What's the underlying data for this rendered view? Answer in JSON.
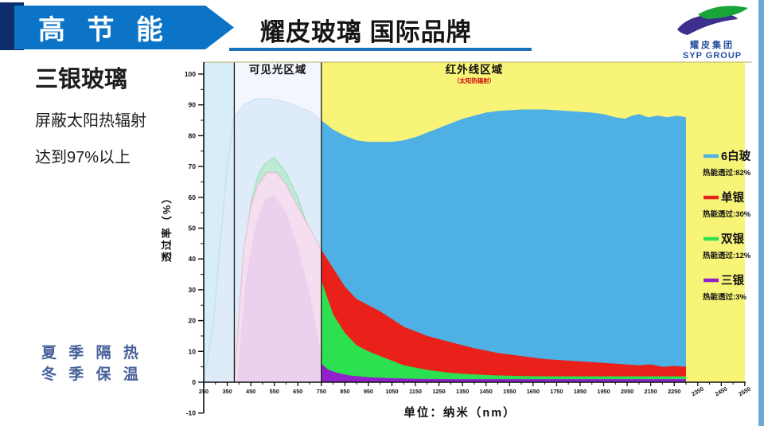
{
  "header": {
    "banner": "高 节 能",
    "title": "耀皮玻璃 国际品牌",
    "logo_cn": "耀皮集团",
    "logo_en": "SYP GROUP"
  },
  "side": {
    "heading": "三银玻璃",
    "line1": "屏蔽太阳热辐射",
    "line2": "达到97%以上"
  },
  "footer": {
    "line1": "夏 季 隔 热",
    "line2": "冬 季 保 温"
  },
  "colors": {
    "banner_blue": "#0b74c7",
    "accent_navy": "#0d2e6a",
    "underline_blue": "#1b72bc",
    "edge_strip_blue": "#6ea9d3",
    "season_text_blue": "#46619a"
  },
  "chart_data": {
    "type": "area",
    "title": "",
    "xlabel": "单位：纳米（nm）",
    "ylabel": "透过率（%）",
    "xlim": [
      250,
      2550
    ],
    "ylim": [
      -10,
      104
    ],
    "grid": false,
    "legend_position": "right",
    "y_tick_labels": [
      100,
      90,
      80,
      70,
      60,
      50,
      40,
      30,
      20,
      10,
      0,
      -10
    ],
    "x_tick_labels": [
      250,
      350,
      450,
      550,
      650,
      750,
      850,
      950,
      1050,
      1150,
      1250,
      1350,
      1450,
      1550,
      1650,
      1750,
      1850,
      1950,
      2050,
      2150,
      2250
    ],
    "x_tick_labels_slanted": [
      2350,
      2450,
      2550
    ],
    "regions": [
      {
        "id": "uv",
        "label": "",
        "sublabel": "",
        "range": [
          250,
          380
        ],
        "bg": "#d7edf8",
        "label_at_nm": 315
      },
      {
        "id": "visible",
        "label": "可见光区域",
        "sublabel": "",
        "range": [
          380,
          750
        ],
        "bg": "#f3f6fc",
        "label_at_nm": 565
      },
      {
        "id": "infrared",
        "label": "红外线区域",
        "sublabel": "（太阳热辐射）",
        "range": [
          750,
          2550
        ],
        "bg": "#f8f478",
        "label_at_nm": 1400
      }
    ],
    "series": [
      {
        "id": "clear-glass-6mm",
        "name": "6白玻",
        "heat_label": "热能透过:82%",
        "color": "#4fb0e3",
        "pale_fill": "#ddecf8",
        "pale_stroke": "rgba(140,190,230,0.35)",
        "points": [
          [
            250,
            0
          ],
          [
            290,
            18
          ],
          [
            320,
            45
          ],
          [
            350,
            70
          ],
          [
            370,
            81
          ],
          [
            380,
            86
          ],
          [
            420,
            90
          ],
          [
            470,
            92
          ],
          [
            530,
            92
          ],
          [
            600,
            91
          ],
          [
            660,
            89
          ],
          [
            700,
            88
          ],
          [
            750,
            85
          ],
          [
            800,
            82
          ],
          [
            850,
            80
          ],
          [
            900,
            78.5
          ],
          [
            950,
            78
          ],
          [
            1000,
            78
          ],
          [
            1050,
            78
          ],
          [
            1100,
            78.5
          ],
          [
            1150,
            79.5
          ],
          [
            1200,
            81
          ],
          [
            1250,
            82.5
          ],
          [
            1300,
            84
          ],
          [
            1350,
            85.5
          ],
          [
            1400,
            86.5
          ],
          [
            1450,
            87.5
          ],
          [
            1500,
            88
          ],
          [
            1600,
            88.5
          ],
          [
            1700,
            88.5
          ],
          [
            1800,
            88
          ],
          [
            1900,
            87.5
          ],
          [
            1950,
            87
          ],
          [
            2000,
            86
          ],
          [
            2040,
            85.5
          ],
          [
            2070,
            86.5
          ],
          [
            2100,
            87
          ],
          [
            2140,
            86
          ],
          [
            2180,
            86.5
          ],
          [
            2220,
            86
          ],
          [
            2260,
            86.5
          ],
          [
            2300,
            86
          ]
        ]
      },
      {
        "id": "single-silver",
        "name": "单银",
        "heat_label": "热能透过:30%",
        "color": "#e9211a",
        "pale_fill": "#f6def1",
        "pale_stroke": "rgba(235,150,170,0.55)",
        "points": [
          [
            380,
            0
          ],
          [
            400,
            22
          ],
          [
            420,
            43
          ],
          [
            450,
            57
          ],
          [
            480,
            64
          ],
          [
            520,
            68
          ],
          [
            560,
            68
          ],
          [
            600,
            64
          ],
          [
            650,
            57
          ],
          [
            700,
            50
          ],
          [
            750,
            43
          ],
          [
            800,
            37
          ],
          [
            850,
            31
          ],
          [
            900,
            27
          ],
          [
            950,
            25
          ],
          [
            1000,
            23
          ],
          [
            1100,
            18
          ],
          [
            1200,
            15
          ],
          [
            1300,
            13
          ],
          [
            1400,
            11
          ],
          [
            1500,
            9.5
          ],
          [
            1600,
            8.5
          ],
          [
            1700,
            7.5
          ],
          [
            1800,
            7
          ],
          [
            1900,
            6.5
          ],
          [
            2000,
            6
          ],
          [
            2100,
            5.5
          ],
          [
            2150,
            5.8
          ],
          [
            2200,
            5
          ],
          [
            2250,
            5.3
          ],
          [
            2300,
            5
          ]
        ]
      },
      {
        "id": "double-silver",
        "name": "双银",
        "heat_label": "热能透过:12%",
        "color": "#2de04f",
        "pale_fill": "rgba(150,232,170,0.45)",
        "pale_stroke": "rgba(110,210,140,0.5)",
        "points": [
          [
            385,
            0
          ],
          [
            420,
            38
          ],
          [
            450,
            58
          ],
          [
            480,
            67
          ],
          [
            510,
            71
          ],
          [
            550,
            73
          ],
          [
            600,
            68
          ],
          [
            650,
            60
          ],
          [
            700,
            49
          ],
          [
            750,
            33
          ],
          [
            800,
            22
          ],
          [
            850,
            16
          ],
          [
            900,
            12
          ],
          [
            950,
            10
          ],
          [
            1000,
            8.5
          ],
          [
            1100,
            5.5
          ],
          [
            1200,
            4
          ],
          [
            1300,
            3
          ],
          [
            1400,
            2.5
          ],
          [
            1500,
            2.2
          ],
          [
            1600,
            2
          ],
          [
            1700,
            1.9
          ],
          [
            1800,
            1.9
          ],
          [
            1900,
            1.9
          ],
          [
            2000,
            1.9
          ],
          [
            2100,
            1.9
          ],
          [
            2200,
            1.9
          ],
          [
            2300,
            1.9
          ]
        ]
      },
      {
        "id": "triple-silver",
        "name": "三银",
        "heat_label": "热能透过:3%",
        "color": "#9121cb",
        "pale_fill": "rgba(195,160,228,0.20)",
        "pale_stroke": "none",
        "points": [
          [
            390,
            0
          ],
          [
            430,
            34
          ],
          [
            470,
            51
          ],
          [
            510,
            59
          ],
          [
            550,
            61
          ],
          [
            600,
            55
          ],
          [
            650,
            44
          ],
          [
            700,
            29
          ],
          [
            745,
            11
          ],
          [
            750,
            6
          ],
          [
            780,
            4
          ],
          [
            820,
            3
          ],
          [
            870,
            2.2
          ],
          [
            950,
            1.6
          ],
          [
            1050,
            1.3
          ],
          [
            1150,
            1.1
          ],
          [
            1300,
            1
          ],
          [
            1500,
            1
          ],
          [
            1700,
            1
          ],
          [
            1900,
            1
          ],
          [
            2100,
            1
          ],
          [
            2300,
            1
          ]
        ]
      }
    ]
  }
}
